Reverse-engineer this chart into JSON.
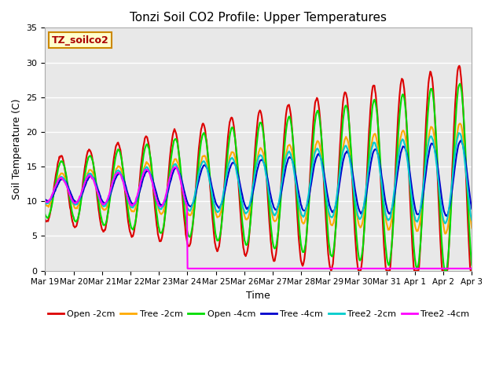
{
  "title": "Tonzi Soil CO2 Profile: Upper Temperatures",
  "xlabel": "Time",
  "ylabel": "Soil Temperature (C)",
  "ylim": [
    0,
    35
  ],
  "watermark": "TZ_soilco2",
  "background_color": "#e8e8e8",
  "series": [
    {
      "label": "Open -2cm",
      "color": "#dd0000",
      "lw": 1.5
    },
    {
      "label": "Tree -2cm",
      "color": "#ffaa00",
      "lw": 1.5
    },
    {
      "label": "Open -4cm",
      "color": "#00dd00",
      "lw": 1.5
    },
    {
      "label": "Tree -4cm",
      "color": "#0000cc",
      "lw": 1.5
    },
    {
      "label": "Tree2 -2cm",
      "color": "#00cccc",
      "lw": 1.5
    },
    {
      "label": "Tree2 -4cm",
      "color": "#ff00ff",
      "lw": 1.5
    }
  ],
  "xtick_labels": [
    "Mar 19",
    "Mar 20",
    "Mar 21",
    "Mar 22",
    "Mar 23",
    "Mar 24",
    "Mar 25",
    "Mar 26",
    "Mar 27",
    "Mar 28",
    "Mar 29",
    "Mar 30",
    "Mar 31",
    "Apr 1",
    "Apr 2",
    "Apr 3"
  ],
  "n_days": 15,
  "samples_per_day": 48,
  "tree2_cutoff_day": 5
}
